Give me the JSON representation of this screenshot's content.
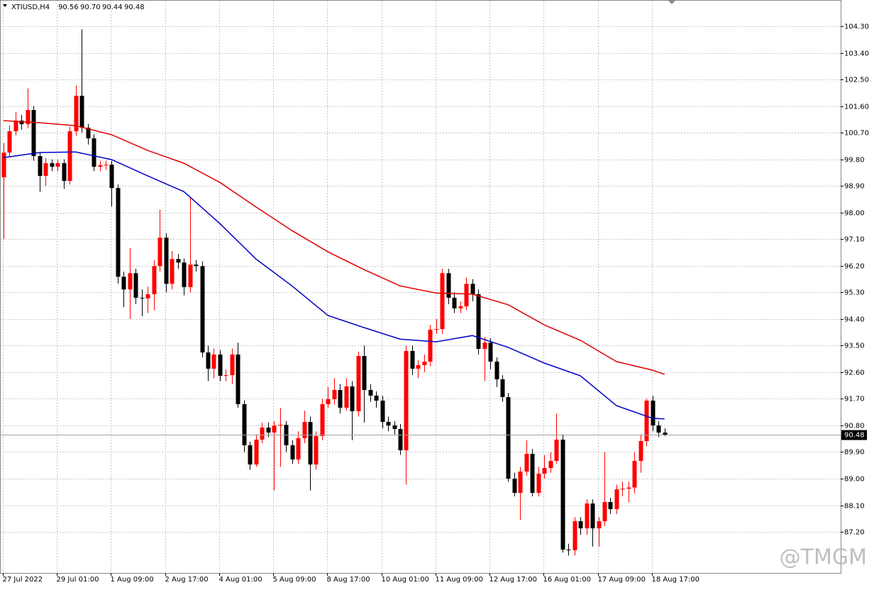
{
  "chart_data": {
    "type": "candlestick",
    "title": "XTIUSD,H4",
    "ohlc_labels": [
      "90.56",
      "90.70",
      "90.44",
      "90.48"
    ],
    "watermark": "@TMGM",
    "up_color": "#ff0000",
    "down_color": "#000000",
    "grid": true,
    "categories": [
      "27 Jul 2022",
      null,
      null,
      null,
      null,
      null,
      null,
      null,
      null,
      "29 Jul 01:00",
      null,
      null,
      null,
      null,
      null,
      null,
      null,
      null,
      "1 Aug 09:00",
      null,
      null,
      null,
      null,
      null,
      null,
      null,
      null,
      "2 Aug 17:00",
      null,
      null,
      null,
      null,
      null,
      null,
      null,
      null,
      "4 Aug 01:00",
      null,
      null,
      null,
      null,
      null,
      null,
      null,
      null,
      "5 Aug 09:00",
      null,
      null,
      null,
      null,
      null,
      null,
      null,
      null,
      "8 Aug 17:00",
      null,
      null,
      null,
      null,
      null,
      null,
      null,
      null,
      "10 Aug 01:00",
      null,
      null,
      null,
      null,
      null,
      null,
      null,
      null,
      "11 Aug 09:00",
      null,
      null,
      null,
      null,
      null,
      null,
      null,
      null,
      "12 Aug 17:00",
      null,
      null,
      null,
      null,
      null,
      null,
      null,
      null,
      "16 Aug 01:00",
      null,
      null,
      null,
      null,
      null,
      null,
      null,
      null,
      "17 Aug 09:00",
      null,
      null,
      null,
      null,
      null,
      null,
      null,
      null,
      "18 Aug 17:00",
      null,
      null
    ],
    "open": [
      99.19,
      100.03,
      100.75,
      101.11,
      100.99,
      101.47,
      99.91,
      99.24,
      99.67,
      99.55,
      99.67,
      99.07,
      100.75,
      101.95,
      100.87,
      100.51,
      99.55,
      99.6,
      99.62,
      98.83,
      95.83,
      95.4,
      95.95,
      95.12,
      95.1,
      95.24,
      96.19,
      97.15,
      95.59,
      96.43,
      96.31,
      95.48,
      96.24,
      96.19,
      93.27,
      92.72,
      93.2,
      92.48,
      92.5,
      93.2,
      91.52,
      90.13,
      89.48,
      90.32,
      90.73,
      90.56,
      90.8,
      90.82,
      90.13,
      89.65,
      90.37,
      90.92,
      89.48,
      90.44,
      91.52,
      91.69,
      92.0,
      91.4,
      92.12,
      91.28,
      93.15,
      92.0,
      91.81,
      91.64,
      90.92,
      90.8,
      90.68,
      89.96,
      93.32,
      92.72,
      92.84,
      92.96,
      94.04,
      94.06,
      95.95,
      95.12,
      94.76,
      94.83,
      95.59,
      95.24,
      93.39,
      93.6,
      92.96,
      92.36,
      91.76,
      89.0,
      88.52,
      89.24,
      89.84,
      88.52,
      89.17,
      89.36,
      89.6,
      90.32,
      86.6,
      86.58,
      87.56,
      87.32,
      88.16,
      87.32,
      87.56,
      88.21,
      87.97,
      88.64,
      88.66,
      88.7,
      89.6,
      90.27,
      91.64,
      90.8,
      90.56
    ],
    "high": [
      100.35,
      100.95,
      101.4,
      101.3,
      102.2,
      101.6,
      100.05,
      99.85,
      99.8,
      99.8,
      99.8,
      100.9,
      102.3,
      104.2,
      101.0,
      100.65,
      99.75,
      99.75,
      99.75,
      98.95,
      96.0,
      96.8,
      96.1,
      95.4,
      95.5,
      96.4,
      98.1,
      97.3,
      96.7,
      96.6,
      96.45,
      98.5,
      96.4,
      96.35,
      93.5,
      93.4,
      93.35,
      92.7,
      93.4,
      93.6,
      91.65,
      90.25,
      90.5,
      90.9,
      90.9,
      90.95,
      91.4,
      90.95,
      90.3,
      90.6,
      91.3,
      91.1,
      90.6,
      91.7,
      92.1,
      92.4,
      92.2,
      92.4,
      92.3,
      93.3,
      93.5,
      92.2,
      91.95,
      91.8,
      91.1,
      90.95,
      90.85,
      93.5,
      93.5,
      93.0,
      93.2,
      94.2,
      94.4,
      96.1,
      96.1,
      95.3,
      95.0,
      95.8,
      95.75,
      95.4,
      93.8,
      93.75,
      93.1,
      92.5,
      91.9,
      89.2,
      89.4,
      90.3,
      90.0,
      89.4,
      89.8,
      89.9,
      91.2,
      90.5,
      86.8,
      87.7,
      87.7,
      88.3,
      88.3,
      87.7,
      89.9,
      88.35,
      88.8,
      88.9,
      88.9,
      89.9,
      90.5,
      91.7,
      91.8,
      90.95,
      90.7
    ],
    "low": [
      97.1,
      99.9,
      100.6,
      100.8,
      100.85,
      99.75,
      98.7,
      98.9,
      99.4,
      99.4,
      98.8,
      98.95,
      100.6,
      100.7,
      100.3,
      99.4,
      99.4,
      99.45,
      98.2,
      95.6,
      94.8,
      94.4,
      94.9,
      94.5,
      94.6,
      94.7,
      96.0,
      95.3,
      95.4,
      96.1,
      95.2,
      95.3,
      96.0,
      93.1,
      92.3,
      92.4,
      92.3,
      92.3,
      92.2,
      91.4,
      89.9,
      89.3,
      89.4,
      90.2,
      90.4,
      88.6,
      89.4,
      89.9,
      89.5,
      89.5,
      90.2,
      88.6,
      89.3,
      90.3,
      91.4,
      91.5,
      91.2,
      91.3,
      90.3,
      91.1,
      90.9,
      91.6,
      91.4,
      90.7,
      90.6,
      90.5,
      89.8,
      88.8,
      92.5,
      92.4,
      92.6,
      92.8,
      93.9,
      93.9,
      94.9,
      94.6,
      94.6,
      94.7,
      95.0,
      93.2,
      92.3,
      92.7,
      92.1,
      91.6,
      88.9,
      88.4,
      87.6,
      89.1,
      88.4,
      88.4,
      89.0,
      89.2,
      89.5,
      86.5,
      86.4,
      86.4,
      87.1,
      87.1,
      86.7,
      86.7,
      87.4,
      87.8,
      87.8,
      88.4,
      88.2,
      88.5,
      89.2,
      90.1,
      90.6,
      90.4,
      90.44
    ],
    "close": [
      100.03,
      100.75,
      101.11,
      100.99,
      101.47,
      99.91,
      99.24,
      99.67,
      99.55,
      99.67,
      99.07,
      100.75,
      101.95,
      100.87,
      100.51,
      99.55,
      99.6,
      99.62,
      98.83,
      95.83,
      95.4,
      95.95,
      95.12,
      95.1,
      95.24,
      96.19,
      97.15,
      95.59,
      96.43,
      96.31,
      95.48,
      96.24,
      96.19,
      93.27,
      92.72,
      93.2,
      92.48,
      92.5,
      93.2,
      91.52,
      90.13,
      89.48,
      90.32,
      90.73,
      90.56,
      90.8,
      90.82,
      90.13,
      89.65,
      90.37,
      90.92,
      89.48,
      90.44,
      91.52,
      91.69,
      92.0,
      91.4,
      92.12,
      91.28,
      93.15,
      92.0,
      91.81,
      91.64,
      90.92,
      90.8,
      90.68,
      89.96,
      93.32,
      92.72,
      92.84,
      92.96,
      94.04,
      94.06,
      95.95,
      95.12,
      94.76,
      94.83,
      95.59,
      95.24,
      93.39,
      93.6,
      92.96,
      92.36,
      91.76,
      89.0,
      88.52,
      89.24,
      89.84,
      88.52,
      89.17,
      89.36,
      89.6,
      90.32,
      86.6,
      86.58,
      87.56,
      87.32,
      88.16,
      87.32,
      87.56,
      88.21,
      87.97,
      88.64,
      88.66,
      88.7,
      89.6,
      90.27,
      91.64,
      90.8,
      90.56,
      90.48
    ],
    "lines": [
      {
        "color": "#e00000",
        "x": [
          0,
          6,
          12,
          18,
          24,
          30,
          36,
          42,
          48,
          54,
          60,
          66,
          72,
          78,
          84,
          90,
          96,
          102,
          108,
          110
        ],
        "values": [
          101.11,
          101.04,
          100.94,
          100.63,
          100.1,
          99.67,
          99.02,
          98.19,
          97.39,
          96.67,
          96.07,
          95.52,
          95.28,
          95.24,
          94.88,
          94.2,
          93.68,
          92.96,
          92.67,
          92.53
        ]
      },
      {
        "color": "#0000c8",
        "x": [
          0,
          6,
          12,
          18,
          24,
          30,
          36,
          42,
          48,
          54,
          60,
          66,
          72,
          78,
          84,
          90,
          96,
          102,
          108,
          110
        ],
        "values": [
          99.86,
          100.03,
          100.05,
          99.79,
          99.24,
          98.71,
          97.63,
          96.43,
          95.52,
          94.52,
          94.11,
          93.72,
          93.63,
          93.84,
          93.44,
          92.91,
          92.48,
          91.47,
          91.04,
          91.02
        ]
      }
    ],
    "last_price": {
      "value": 90.48,
      "label": "90.48"
    },
    "ylim": [
      85.81,
      105.19
    ],
    "yticks": [
      {
        "value": 104.3,
        "label": "104.30"
      },
      {
        "value": 103.4,
        "label": "103.40"
      },
      {
        "value": 102.5,
        "label": "102.50"
      },
      {
        "value": 101.6,
        "label": "101.60"
      },
      {
        "value": 100.7,
        "label": "100.70"
      },
      {
        "value": 99.8,
        "label": "99.80"
      },
      {
        "value": 98.9,
        "label": "98.90"
      },
      {
        "value": 98,
        "label": "98.00"
      },
      {
        "value": 97.1,
        "label": "97.10"
      },
      {
        "value": 96.2,
        "label": "96.20"
      },
      {
        "value": 95.3,
        "label": "95.30"
      },
      {
        "value": 94.4,
        "label": "94.40"
      },
      {
        "value": 93.5,
        "label": "93.50"
      },
      {
        "value": 92.6,
        "label": "92.60"
      },
      {
        "value": 91.7,
        "label": "91.70"
      },
      {
        "value": 90.8,
        "label": "90.80"
      },
      {
        "value": 89.9,
        "label": "89.90"
      },
      {
        "value": 89,
        "label": "89.00"
      },
      {
        "value": 88.1,
        "label": "88.10"
      },
      {
        "value": 87.2,
        "label": "87.20"
      }
    ]
  }
}
